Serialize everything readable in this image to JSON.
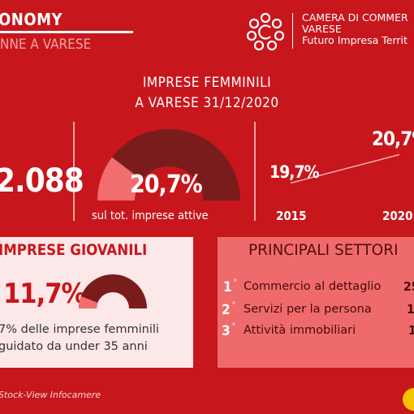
{
  "header": {
    "title": "ONOMY",
    "subtitle": "NNE A VARESE",
    "organization": {
      "line1": "CAMERA DI COMMER",
      "line2": "VARESE",
      "line3": "Futuro Impresa Territ"
    }
  },
  "main": {
    "title_line1": "IMPRESE FEMMINILI",
    "title_line2": "A VARESE 31/12/2020",
    "total_value": ".088",
    "share": {
      "value": "20,7%",
      "fraction": 0.207,
      "caption": "sul tot. imprese attive"
    },
    "trend": {
      "years": [
        "2015",
        "2020"
      ],
      "values_label": [
        "19,7%",
        "20,7%"
      ],
      "values": [
        19.7,
        20.7
      ]
    }
  },
  "young": {
    "title": "MPRESE GIOVANILI",
    "value": "11,7%",
    "fraction": 0.117,
    "text_line1": "7% delle imprese femminili",
    "text_line2": "guidato da under 35 anni"
  },
  "sectors": {
    "title": "PRINCIPALI SETTORI",
    "items": [
      {
        "rank": "1",
        "name": "Commercio al dettaglio",
        "value": "25"
      },
      {
        "rank": "2",
        "name": "Servizi per la persona",
        "value": "1"
      },
      {
        "rank": "3",
        "name": "Attività immobiliari",
        "value": "1"
      }
    ]
  },
  "footer": {
    "source": "Stock-View Infocamere"
  },
  "colors": {
    "background": "#c8161d",
    "gauge_dark": "#7a1c1c",
    "gauge_light": "#f26d6d",
    "panel_light": "#fce8e8",
    "panel_accent": "#ef6b6b"
  }
}
